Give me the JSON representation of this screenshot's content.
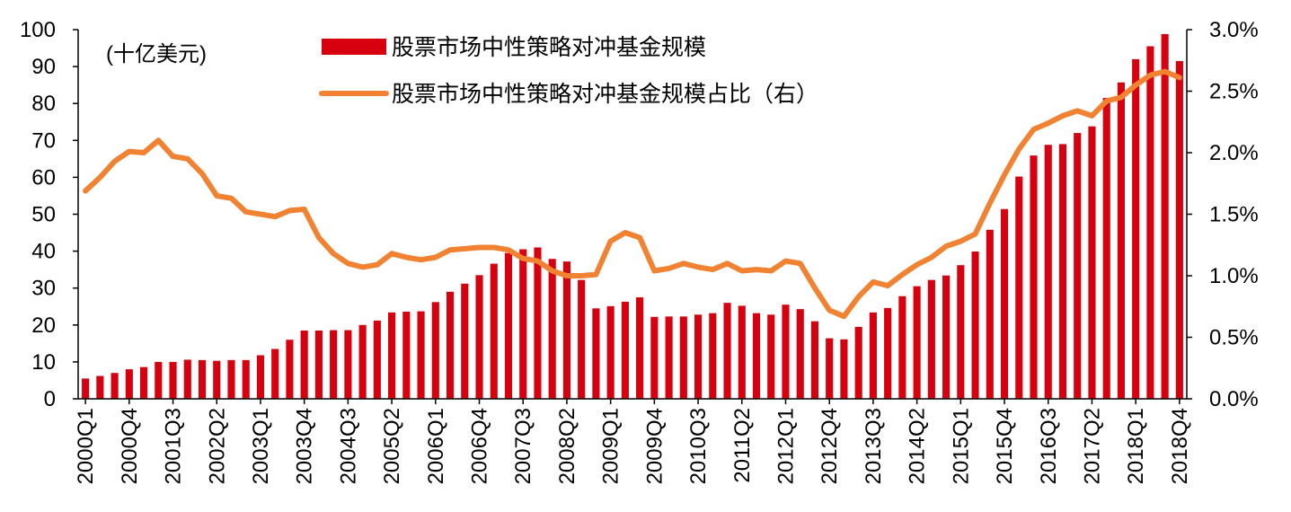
{
  "chart_data": {
    "type": "bar",
    "unit_label": "(十亿美元)",
    "categories": [
      "2000Q1",
      "2000Q2",
      "2000Q3",
      "2000Q4",
      "2001Q1",
      "2001Q2",
      "2001Q3",
      "2001Q4",
      "2002Q1",
      "2002Q2",
      "2002Q3",
      "2002Q4",
      "2003Q1",
      "2003Q2",
      "2003Q3",
      "2003Q4",
      "2004Q1",
      "2004Q2",
      "2004Q3",
      "2004Q4",
      "2005Q1",
      "2005Q2",
      "2005Q3",
      "2005Q4",
      "2006Q1",
      "2006Q2",
      "2006Q3",
      "2006Q4",
      "2007Q1",
      "2007Q2",
      "2007Q3",
      "2007Q4",
      "2008Q1",
      "2008Q2",
      "2008Q3",
      "2008Q4",
      "2009Q1",
      "2009Q2",
      "2009Q3",
      "2009Q4",
      "2010Q1",
      "2010Q2",
      "2010Q3",
      "2010Q4",
      "2011Q1",
      "2011Q2",
      "2011Q3",
      "2011Q4",
      "2012Q1",
      "2012Q2",
      "2012Q3",
      "2012Q4",
      "2013Q1",
      "2013Q2",
      "2013Q3",
      "2013Q4",
      "2014Q1",
      "2014Q2",
      "2014Q3",
      "2014Q4",
      "2015Q1",
      "2015Q2",
      "2015Q3",
      "2015Q4",
      "2016Q1",
      "2016Q2",
      "2016Q3",
      "2016Q4",
      "2017Q1",
      "2017Q2",
      "2017Q3",
      "2017Q4",
      "2018Q1",
      "2018Q2",
      "2018Q3",
      "2018Q4"
    ],
    "tick_labels": [
      "2000Q1",
      "2000Q4",
      "2001Q3",
      "2002Q2",
      "2003Q1",
      "2003Q4",
      "2004Q3",
      "2005Q2",
      "2006Q1",
      "2006Q4",
      "2007Q3",
      "2008Q2",
      "2009Q1",
      "2009Q4",
      "2010Q3",
      "2011Q2",
      "2012Q1",
      "2012Q4",
      "2013Q3",
      "2014Q2",
      "2015Q1",
      "2015Q4",
      "2016Q3",
      "2017Q2",
      "2018Q1",
      "2018Q4"
    ],
    "series": [
      {
        "name": "股票市场中性策略对冲基金规模",
        "type": "bar",
        "axis": "left",
        "color": "#d7000f",
        "values": [
          5.5,
          6.2,
          7,
          8,
          8.6,
          10,
          10,
          10.6,
          10.5,
          10.3,
          10.5,
          10.5,
          11.8,
          13.5,
          16,
          18.5,
          18.5,
          18.6,
          18.6,
          20,
          21.2,
          23.4,
          23.6,
          23.7,
          26.2,
          29,
          31.2,
          33.5,
          36.6,
          39.5,
          40.5,
          41,
          37.9,
          37.2,
          32.2,
          24.5,
          25.1,
          26.3,
          27.5,
          22.2,
          22.3,
          22.3,
          22.8,
          23.2,
          26,
          25.2,
          23.2,
          22.8,
          25.5,
          24.3,
          21,
          16.4,
          16.1,
          19.5,
          23.4,
          24.6,
          27.8,
          30.5,
          32.2,
          33.4,
          36.2,
          39.9,
          45.8,
          51.4,
          60.2,
          65.9,
          68.8,
          69,
          72,
          73.8,
          81.5,
          85.7,
          92,
          95.5,
          98.8,
          91.5
        ]
      },
      {
        "name": "股票市场中性策略对冲基金规模占比（右）",
        "type": "line",
        "axis": "right",
        "color": "#f08232",
        "values": [
          1.69,
          1.8,
          1.93,
          2.01,
          2,
          2.1,
          1.97,
          1.95,
          1.83,
          1.65,
          1.63,
          1.52,
          1.5,
          1.48,
          1.53,
          1.54,
          1.31,
          1.18,
          1.1,
          1.07,
          1.09,
          1.18,
          1.15,
          1.13,
          1.15,
          1.21,
          1.22,
          1.23,
          1.23,
          1.21,
          1.14,
          1.12,
          1.04,
          1,
          1,
          1.01,
          1.28,
          1.35,
          1.31,
          1.04,
          1.06,
          1.1,
          1.07,
          1.05,
          1.1,
          1.04,
          1.05,
          1.04,
          1.12,
          1.1,
          0.9,
          0.72,
          0.67,
          0.83,
          0.95,
          0.92,
          1.01,
          1.09,
          1.15,
          1.24,
          1.28,
          1.34,
          1.59,
          1.82,
          2.03,
          2.19,
          2.24,
          2.3,
          2.34,
          2.3,
          2.42,
          2.45,
          2.55,
          2.63,
          2.66,
          2.61
        ]
      }
    ],
    "y_left": {
      "min": 0,
      "max": 100,
      "step": 10,
      "ticks": [
        "0",
        "10",
        "20",
        "30",
        "40",
        "50",
        "60",
        "70",
        "80",
        "90",
        "100"
      ]
    },
    "y_right": {
      "min": 0,
      "max": 3.0,
      "step": 0.5,
      "ticks": [
        "0.0%",
        "0.5%",
        "1.0%",
        "1.5%",
        "2.0%",
        "2.5%",
        "3.0%"
      ]
    },
    "legend": [
      {
        "label": "股票市场中性策略对冲基金规模",
        "swatch": "bar",
        "color": "#d7000f"
      },
      {
        "label": "股票市场中性策略对冲基金规模占比（右）",
        "swatch": "line",
        "color": "#f08232"
      }
    ],
    "legend_position": "top-center",
    "grid": false
  }
}
